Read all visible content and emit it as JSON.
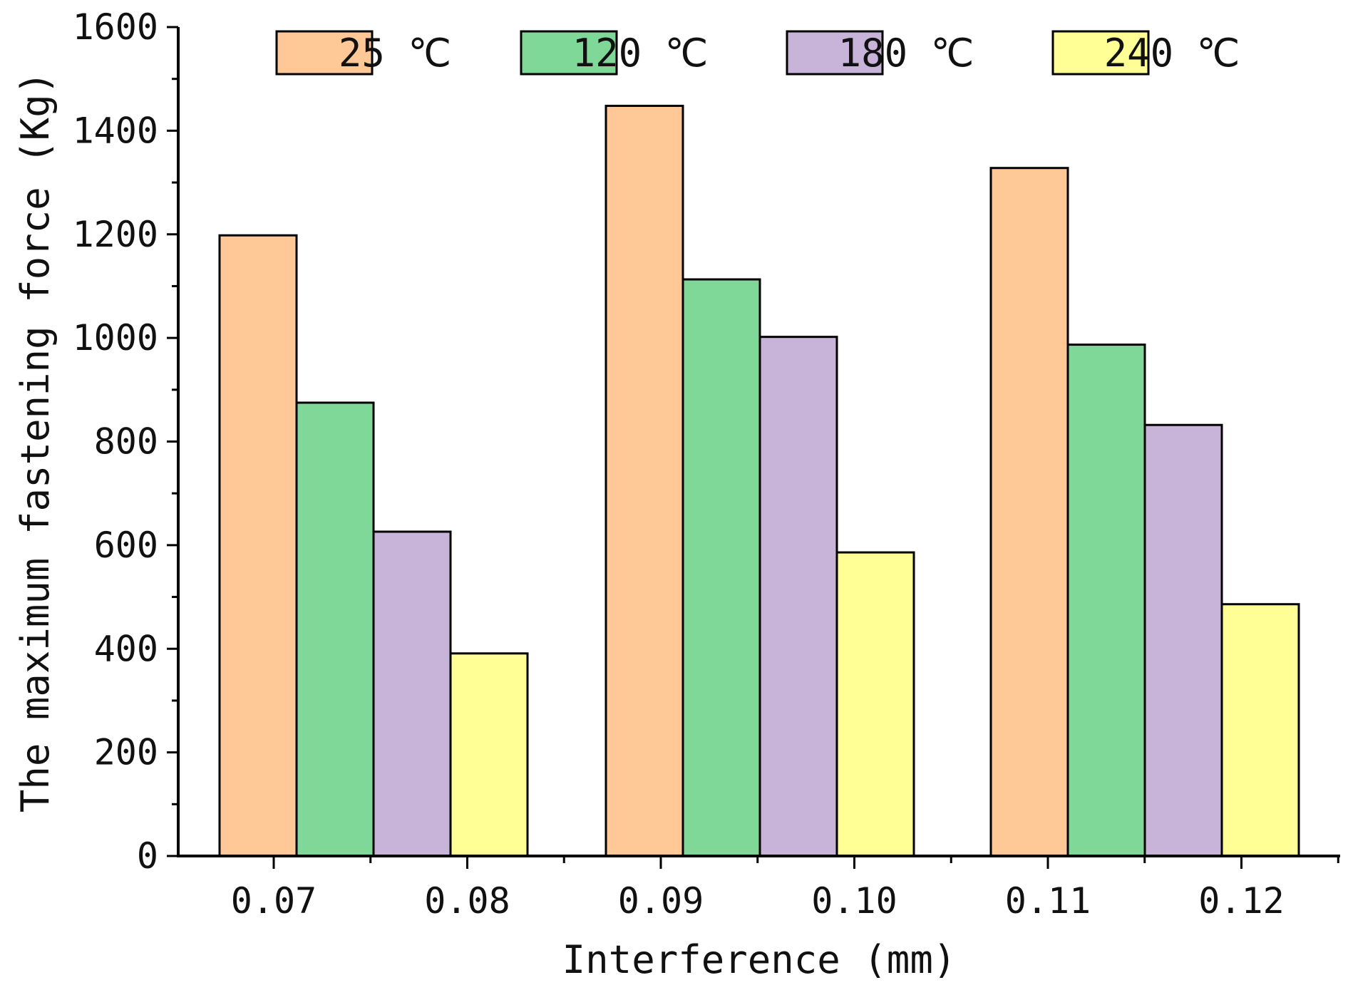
{
  "chart_data": {
    "type": "bar",
    "title": "",
    "xlabel": "Interference (mm)",
    "ylabel": "The maximum fastening force (Kg)",
    "ylim": [
      0,
      1600
    ],
    "yticks": [
      "0",
      "200",
      "400",
      "600",
      "800",
      "1000",
      "1200",
      "1400",
      "1600"
    ],
    "x_ticks": [
      "0.07",
      "0.08",
      "0.09",
      "0.10",
      "0.11",
      "0.12"
    ],
    "categories": [
      "0.07–0.08",
      "0.09–0.10",
      "0.11–0.12"
    ],
    "legend_position": "top-right",
    "grid": false,
    "series": [
      {
        "name": "25 ℃",
        "color": "#ffc896",
        "values": [
          1198,
          1448,
          1328
        ]
      },
      {
        "name": "120 ℃",
        "color": "#7fd898",
        "values": [
          875,
          1113,
          987
        ]
      },
      {
        "name": "180 ℃",
        "color": "#c8b4d8",
        "values": [
          626,
          1002,
          832
        ]
      },
      {
        "name": "240 ℃",
        "color": "#ffff96",
        "values": [
          391,
          586,
          486
        ]
      }
    ]
  }
}
